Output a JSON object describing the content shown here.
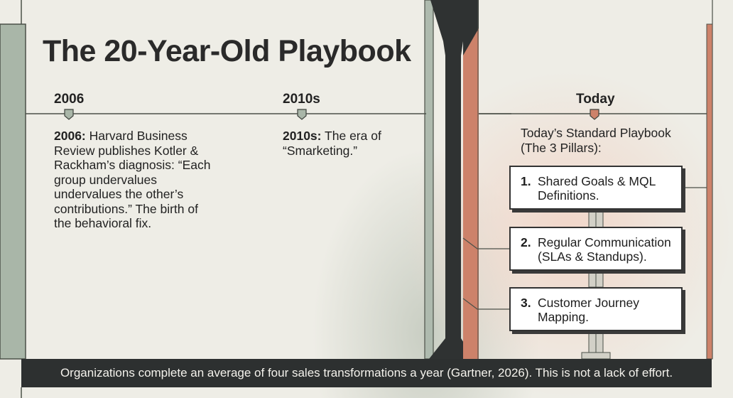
{
  "title": "The 20-Year-Old Playbook",
  "timeline": [
    {
      "year": "2006",
      "desc_strong": "2006:",
      "desc_rest": " Harvard Business Review publishes Kotler & Rackham’s diagnosis: “Each group undervalues undervalues the other’s contributions.” The birth of the behavioral fix."
    },
    {
      "year": "2010s",
      "desc_strong": "2010s:",
      "desc_rest": " The era of “Smarketing.”"
    },
    {
      "year": "Today",
      "heading": "Today’s Standard Playbook (The 3 Pillars):"
    }
  ],
  "pillars": [
    {
      "num": "1.",
      "text": "Shared Goals & MQL Definitions."
    },
    {
      "num": "2.",
      "text": "Regular Communication (SLAs & Standups)."
    },
    {
      "num": "3.",
      "text": "Customer Journey Mapping."
    }
  ],
  "footer": "Organizations complete an average of four sales transformations a year (Gartner, 2026). This is not a lack of effort.",
  "colors": {
    "background": "#eeede6",
    "sage": "#a9b6a8",
    "terracotta": "#cd826a",
    "dark": "#2d3030"
  }
}
